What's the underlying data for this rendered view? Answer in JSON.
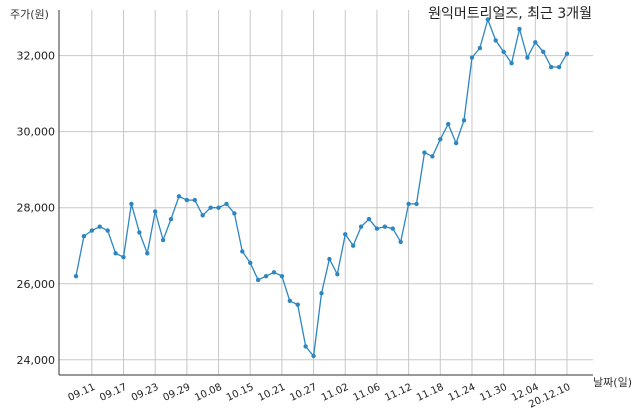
{
  "chart_data": {
    "type": "line",
    "title": "원익머트리얼즈, 최근 3개월",
    "ylabel": "주가(원)",
    "xlabel": "날짜(일)",
    "ylim": [
      23600,
      33200
    ],
    "y_ticks": [
      24000,
      26000,
      28000,
      30000,
      32000
    ],
    "y_tick_labels": [
      "24,000",
      "26,000",
      "28,000",
      "30,000",
      "32,000"
    ],
    "x_tick_labels": [
      "09.11",
      "09.17",
      "09.23",
      "09.29",
      "10.08",
      "10.15",
      "10.21",
      "10.27",
      "11.02",
      "11.06",
      "11.12",
      "11.18",
      "11.24",
      "11.30",
      "12.04",
      "20.12.10"
    ],
    "x_tick_index": [
      2,
      6,
      10,
      14,
      18,
      22,
      26,
      30,
      34,
      38,
      42,
      46,
      50,
      54,
      58,
      62
    ],
    "grid": true,
    "line_color": "#2e86c1",
    "series": [
      {
        "values": [
          26200,
          27250,
          27400,
          27500,
          27400,
          26800,
          26700,
          28100,
          27350,
          26800,
          27900,
          27150,
          27700,
          28300,
          28200,
          28200,
          27800,
          28000,
          28000,
          28100,
          27850,
          26850,
          26550,
          26100,
          26200,
          26300,
          26200,
          25550,
          25450,
          24350,
          24100,
          25750,
          26650,
          26250,
          27300,
          27000,
          27500,
          27700,
          27450,
          27500,
          27450,
          27100,
          28100,
          28100,
          29450,
          29350,
          29800,
          30200,
          29700,
          30300,
          31950,
          32200,
          32950,
          32400,
          32100,
          31800,
          32700,
          31950,
          32350,
          32100,
          31700,
          31700,
          32050
        ]
      }
    ]
  }
}
